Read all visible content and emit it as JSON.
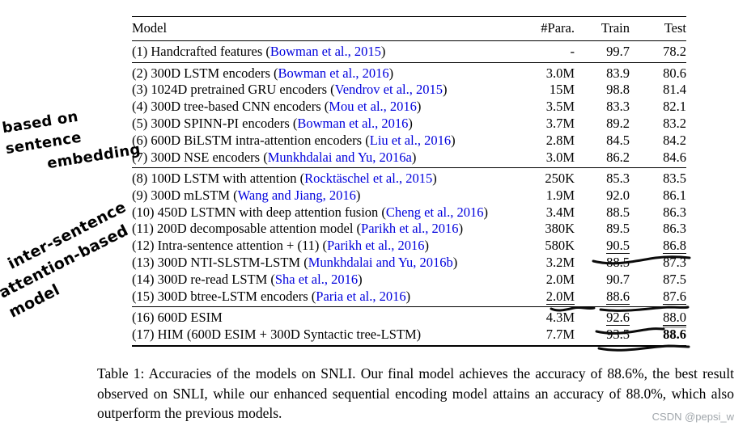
{
  "colors": {
    "citation_blue": "#0000dd",
    "ink": "#000000",
    "watermark_gray": "#a0a6ab"
  },
  "table": {
    "headers": [
      "Model",
      "#Para.",
      "Train",
      "Test"
    ],
    "rows": [
      {
        "group": 0,
        "name": "(1) Handcrafted features",
        "cite": "Bowman et al., 2015",
        "para": "-",
        "train": "99.7",
        "test": "78.2"
      },
      {
        "group": 1,
        "name": "(2) 300D LSTM encoders",
        "cite": "Bowman et al., 2016",
        "para": "3.0M",
        "train": "83.9",
        "test": "80.6"
      },
      {
        "group": 1,
        "name": "(3) 1024D pretrained GRU encoders",
        "cite": "Vendrov et al., 2015",
        "para": "15M",
        "train": "98.8",
        "test": "81.4"
      },
      {
        "group": 1,
        "name": "(4) 300D tree-based CNN encoders",
        "cite": "Mou et al., 2016",
        "para": "3.5M",
        "train": "83.3",
        "test": "82.1"
      },
      {
        "group": 1,
        "name": "(5) 300D SPINN-PI encoders",
        "cite": "Bowman et al., 2016",
        "para": "3.7M",
        "train": "89.2",
        "test": "83.2"
      },
      {
        "group": 1,
        "name": "(6) 600D BiLSTM intra-attention encoders",
        "cite": "Liu et al., 2016",
        "para": "2.8M",
        "train": "84.5",
        "test": "84.2"
      },
      {
        "group": 1,
        "name": "(7) 300D NSE encoders",
        "cite": "Munkhdalai and Yu, 2016a",
        "para": "3.0M",
        "train": "86.2",
        "test": "84.6"
      },
      {
        "group": 2,
        "name": "(8) 100D LSTM with attention",
        "cite": "Rocktäschel et al., 2015",
        "para": "250K",
        "train": "85.3",
        "test": "83.5"
      },
      {
        "group": 2,
        "name": "(9) 300D mLSTM",
        "cite": "Wang and Jiang, 2016",
        "para": "1.9M",
        "train": "92.0",
        "test": "86.1"
      },
      {
        "group": 2,
        "name": "(10) 450D LSTMN with deep attention fusion",
        "cite": "Cheng et al., 2016",
        "para": "3.4M",
        "train": "88.5",
        "test": "86.3"
      },
      {
        "group": 2,
        "name": "(11) 200D decomposable attention model",
        "cite": "Parikh et al., 2016",
        "para": "380K",
        "train": "89.5",
        "test": "86.3"
      },
      {
        "group": 2,
        "name": "(12) Intra-sentence attention + (11)",
        "cite": "Parikh et al., 2016",
        "para": "580K",
        "train": "90.5",
        "test": "86.8",
        "u_train": true,
        "u_test": true
      },
      {
        "group": 2,
        "name": "(13) 300D NTI-SLSTM-LSTM",
        "cite": "Munkhdalai and Yu, 2016b",
        "para": "3.2M",
        "train": "88.5",
        "test": "87.3"
      },
      {
        "group": 2,
        "name": "(14) 300D re-read LSTM",
        "cite": "Sha et al., 2016",
        "para": "2.0M",
        "train": "90.7",
        "test": "87.5"
      },
      {
        "group": 2,
        "name": "(15) 300D btree-LSTM encoders",
        "cite": "Paria et al., 2016",
        "para": "2.0M",
        "train": "88.6",
        "test": "87.6",
        "u_para": true,
        "u_train": true,
        "u_test": true
      },
      {
        "group": 3,
        "name": "(16) 600D ESIM",
        "cite": null,
        "para": "4.3M",
        "train": "92.6",
        "test": "88.0",
        "u_train": true,
        "u2_test": true
      },
      {
        "group": 3,
        "name": "(17) HIM (600D ESIM + 300D Syntactic tree-LSTM)",
        "cite": null,
        "para": "7.7M",
        "train": "93.5",
        "test": "88.6",
        "bold_test": true
      }
    ]
  },
  "caption": {
    "text": "Table 1: Accuracies of the models on SNLI. Our final model achieves the accuracy of 88.6%, the best result observed on SNLI, while our enhanced sequential encoding model attains an accuracy of 88.0%, which also outperform the previous models."
  },
  "annotations": {
    "note1_line1": "based on sentence",
    "note1_line2": "embedding",
    "note2_line1": "inter-sentence",
    "note2_line2": "attention-based model"
  },
  "watermark": {
    "text": "CSDN @pepsi_w"
  }
}
